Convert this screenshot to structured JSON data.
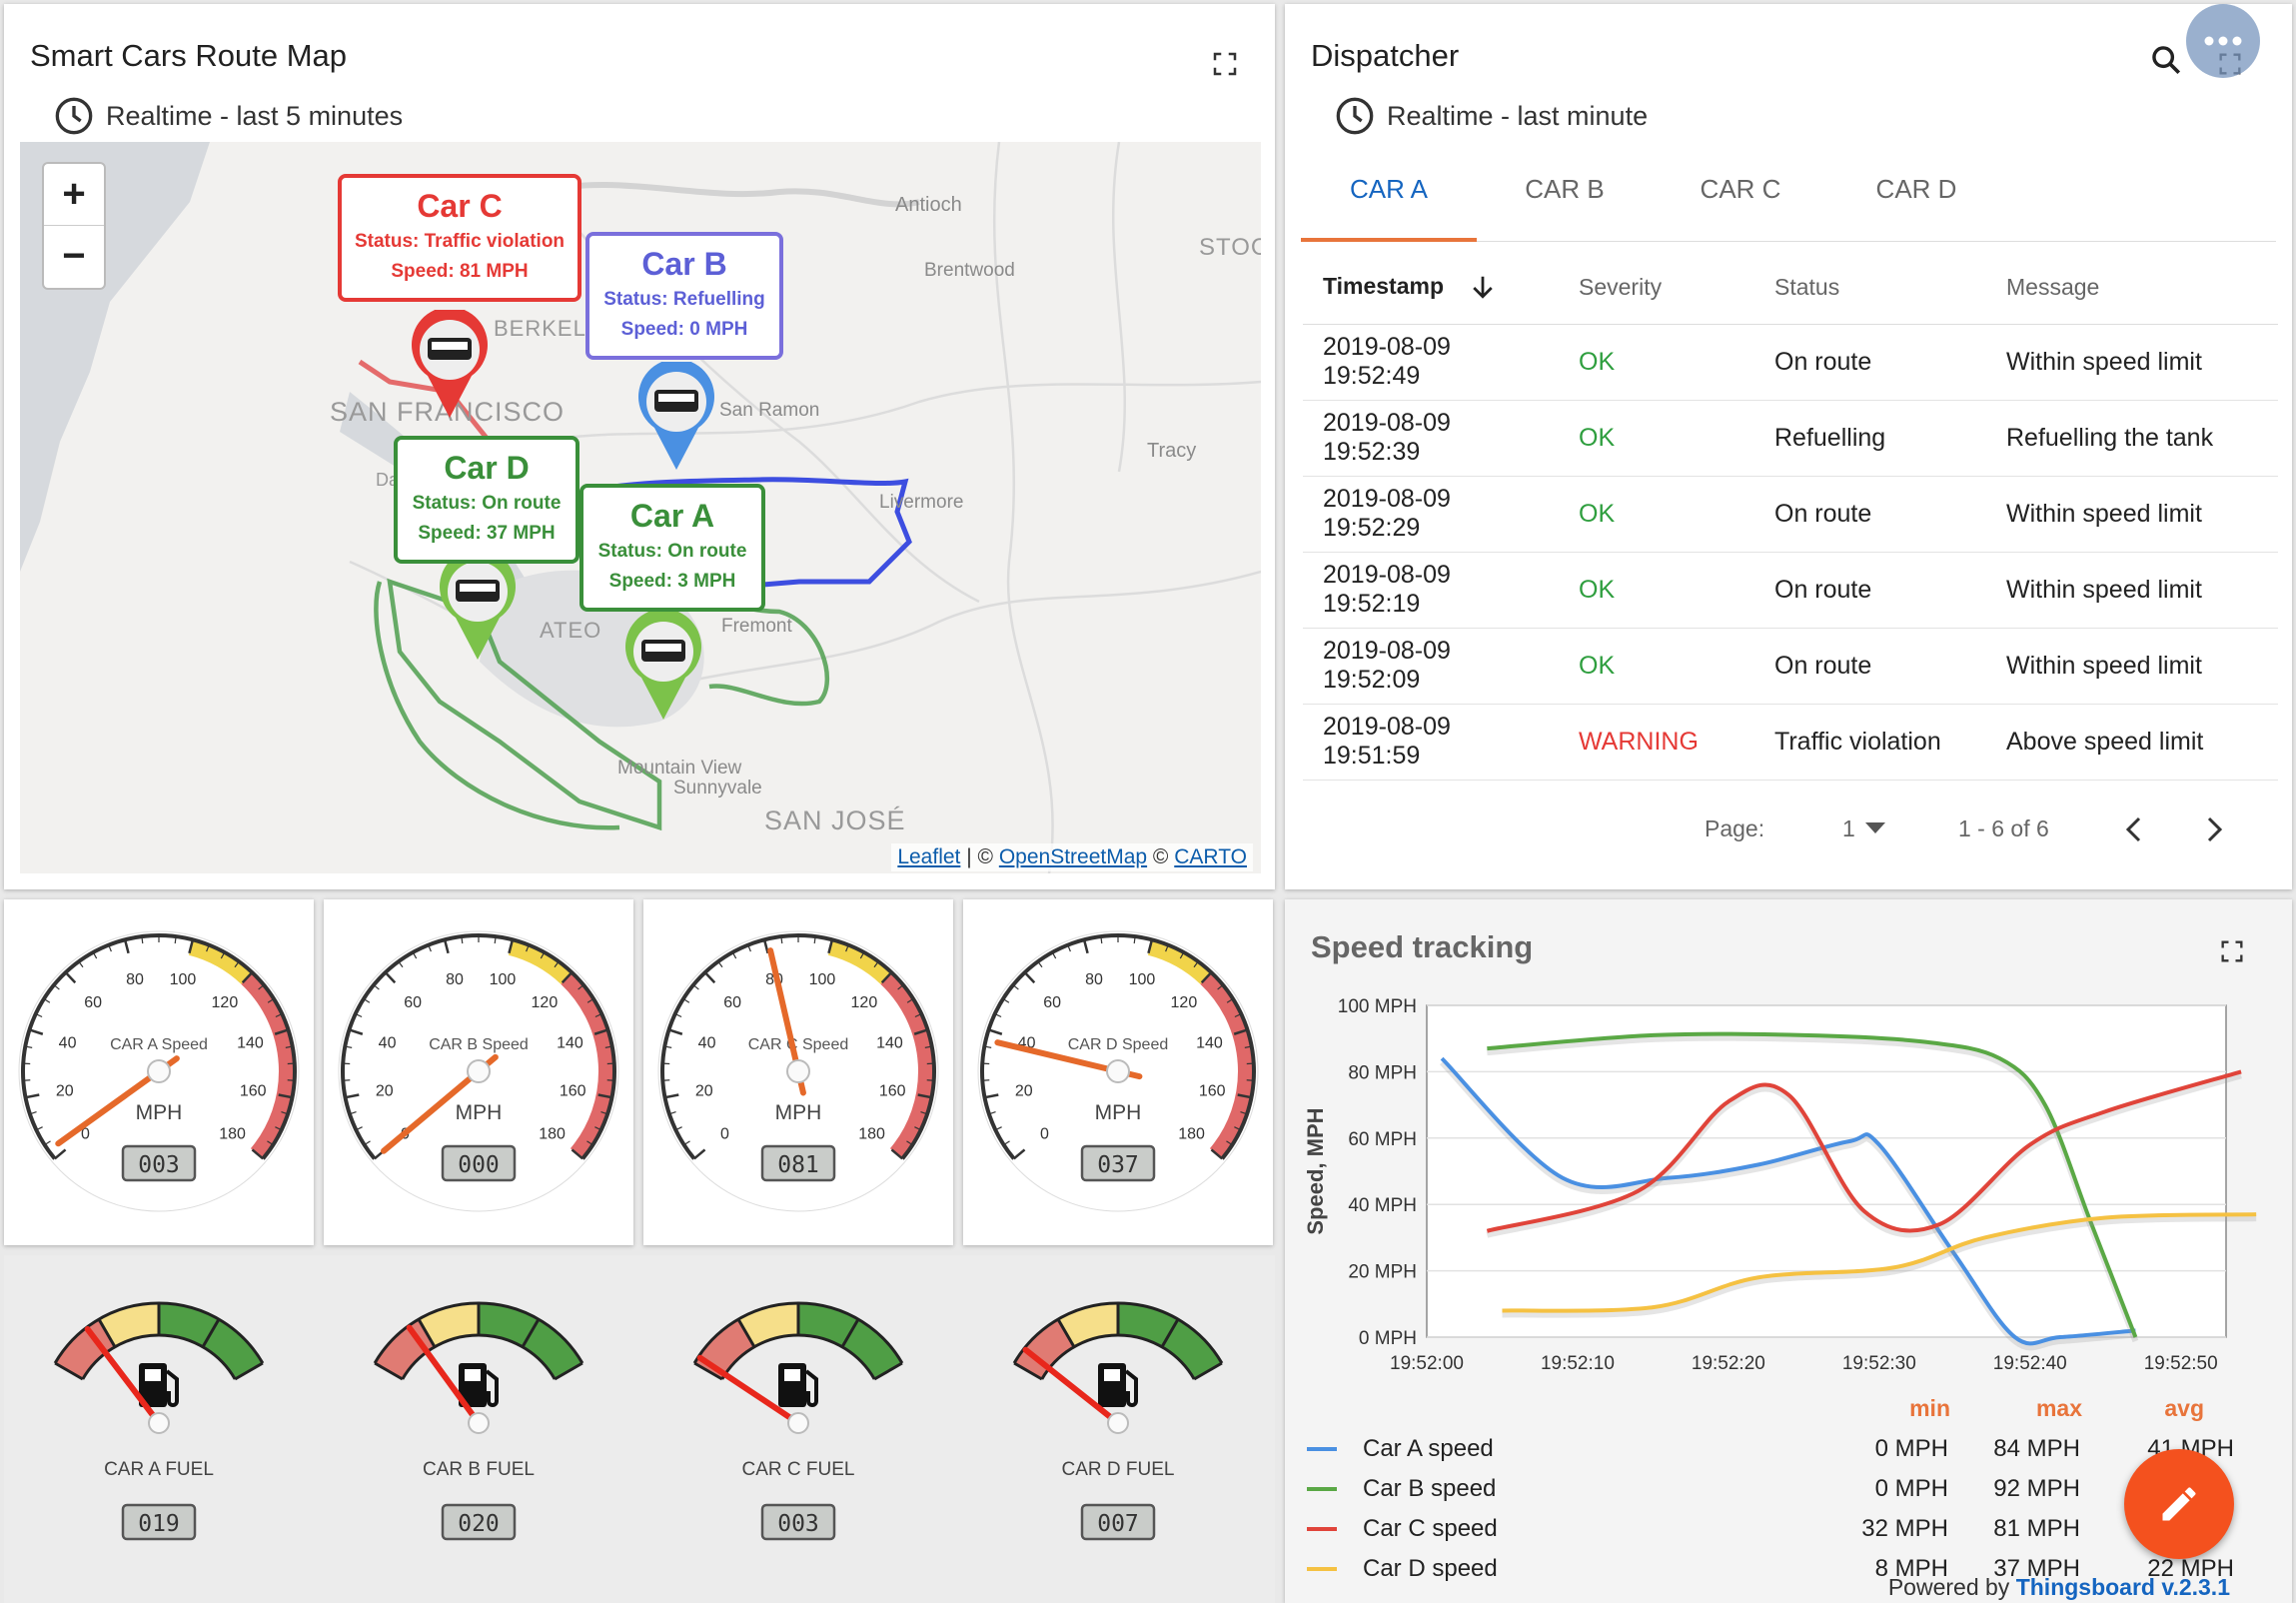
{
  "map_widget": {
    "title": "Smart Cars Route Map",
    "subtitle": "Realtime - last 5 minutes",
    "zoom_in": "+",
    "zoom_out": "−",
    "attribution": {
      "leaflet": "Leaflet",
      "sep1": " | © ",
      "osm": "OpenStreetMap",
      "sep2": " © ",
      "carto": "CARTO"
    },
    "places": [
      "Antioch",
      "Brentwood",
      "STOC",
      "BERKEL",
      "SAN FRANCISCO",
      "San Ramon",
      "Tracy",
      "Livermore",
      "Da Ci",
      "ATEO",
      "Fremont",
      "Mountain View",
      "Sunnyvale",
      "SAN JOSÉ"
    ],
    "cars": [
      {
        "name": "Car C",
        "status": "Status: Traffic violation",
        "speed": "Speed: 81 MPH",
        "color": "#e53935"
      },
      {
        "name": "Car B",
        "status": "Status: Refuelling",
        "speed": "Speed: 0 MPH",
        "color": "#5c5fd6"
      },
      {
        "name": "Car D",
        "status": "Status: On route",
        "speed": "Speed: 37 MPH",
        "color": "#3a8f3a"
      },
      {
        "name": "Car A",
        "status": "Status: On route",
        "speed": "Speed: 3 MPH",
        "color": "#3a8f3a"
      }
    ]
  },
  "dispatcher": {
    "title": "Dispatcher",
    "subtitle": "Realtime - last minute",
    "tabs": [
      "CAR A",
      "CAR B",
      "CAR C",
      "CAR D"
    ],
    "active_tab": "CAR A",
    "columns": [
      "Timestamp",
      "Severity",
      "Status",
      "Message"
    ],
    "rows": [
      {
        "date": "2019-08-09",
        "time": "19:52:49",
        "severity": "OK",
        "status": "On route",
        "message": "Within speed limit"
      },
      {
        "date": "2019-08-09",
        "time": "19:52:39",
        "severity": "OK",
        "status": "Refuelling",
        "message": "Refuelling the tank"
      },
      {
        "date": "2019-08-09",
        "time": "19:52:29",
        "severity": "OK",
        "status": "On route",
        "message": "Within speed limit"
      },
      {
        "date": "2019-08-09",
        "time": "19:52:19",
        "severity": "OK",
        "status": "On route",
        "message": "Within speed limit"
      },
      {
        "date": "2019-08-09",
        "time": "19:52:09",
        "severity": "OK",
        "status": "On route",
        "message": "Within speed limit"
      },
      {
        "date": "2019-08-09",
        "time": "19:51:59",
        "severity": "WARNING",
        "status": "Traffic violation",
        "message": "Above speed limit"
      }
    ],
    "pager": {
      "page_label": "Page:",
      "page": "1",
      "range": "1 - 6 of 6"
    },
    "colors": {
      "ok": "#2e9e3e",
      "warning": "#e53935",
      "accent": "#1565c0",
      "tab_underline": "#e8743b"
    }
  },
  "speed_gauges": [
    {
      "label": "CAR A Speed",
      "unit": "MPH",
      "value": 3,
      "lcd": "003"
    },
    {
      "label": "CAR B Speed",
      "unit": "MPH",
      "value": 0,
      "lcd": "000"
    },
    {
      "label": "CAR C Speed",
      "unit": "MPH",
      "value": 81,
      "lcd": "081"
    },
    {
      "label": "CAR D Speed",
      "unit": "MPH",
      "value": 37,
      "lcd": "037"
    }
  ],
  "speed_scale": {
    "min": 0,
    "max": 180,
    "ticks": [
      "0",
      "20",
      "40",
      "60",
      "80",
      "100",
      "120",
      "140",
      "160",
      "180"
    ]
  },
  "fuel_gauges": [
    {
      "label": "CAR A FUEL",
      "value": 19,
      "lcd": "019"
    },
    {
      "label": "CAR B FUEL",
      "value": 20,
      "lcd": "020"
    },
    {
      "label": "CAR C FUEL",
      "value": 3,
      "lcd": "003"
    },
    {
      "label": "CAR D FUEL",
      "value": 7,
      "lcd": "007"
    }
  ],
  "speed_tracking": {
    "title": "Speed tracking",
    "legend_headers": [
      "min",
      "max",
      "avg"
    ],
    "legend": [
      {
        "name": "Car A speed",
        "min": "0 MPH",
        "max": "84 MPH",
        "avg": "41 MPH",
        "color": "#4a90e2"
      },
      {
        "name": "Car B speed",
        "min": "0 MPH",
        "max": "92 MPH",
        "avg": "",
        "color": "#5aa845"
      },
      {
        "name": "Car C speed",
        "min": "32 MPH",
        "max": "81 MPH",
        "avg": "",
        "color": "#e0443a"
      },
      {
        "name": "Car D speed",
        "min": "8 MPH",
        "max": "37 MPH",
        "avg": "22 MPH",
        "color": "#f5c142"
      }
    ],
    "powered_by": "Powered by",
    "version": "Thingsboard v.2.3.1"
  },
  "chart_data": {
    "type": "line",
    "ylabel": "Speed, MPH",
    "ylim": [
      0,
      100
    ],
    "xlim": [
      "19:52:00",
      "19:52:53"
    ],
    "y_ticks": [
      "0 MPH",
      "20 MPH",
      "40 MPH",
      "60 MPH",
      "80 MPH",
      "100 MPH"
    ],
    "x_ticks": [
      "19:52:00",
      "19:52:10",
      "19:52:20",
      "19:52:30",
      "19:52:40",
      "19:52:50"
    ],
    "grid": true,
    "series": [
      {
        "name": "Car A speed",
        "x": [
          "19:52:01",
          "19:52:09",
          "19:52:16",
          "19:52:22",
          "19:52:28",
          "19:52:30",
          "19:52:35",
          "19:52:39",
          "19:52:42",
          "19:52:47"
        ],
        "values": [
          84,
          48,
          48,
          52,
          59,
          58,
          25,
          0,
          0,
          2
        ]
      },
      {
        "name": "Car B speed",
        "x": [
          "19:52:04",
          "19:52:15",
          "19:52:25",
          "19:52:33",
          "19:52:38",
          "19:52:41",
          "19:52:44",
          "19:52:47"
        ],
        "values": [
          87,
          91,
          91,
          89,
          84,
          70,
          35,
          0
        ]
      },
      {
        "name": "Car C speed",
        "x": [
          "19:52:04",
          "19:52:14",
          "19:52:20",
          "19:52:24",
          "19:52:29",
          "19:52:34",
          "19:52:40",
          "19:52:45",
          "19:52:54"
        ],
        "values": [
          32,
          44,
          71,
          73,
          38,
          34,
          58,
          68,
          80
        ]
      },
      {
        "name": "Car D speed",
        "x": [
          "19:52:05",
          "19:52:15",
          "19:52:22",
          "19:52:31",
          "19:52:37",
          "19:52:45",
          "19:52:55"
        ],
        "values": [
          8,
          9,
          18,
          21,
          30,
          36,
          37
        ]
      }
    ]
  }
}
